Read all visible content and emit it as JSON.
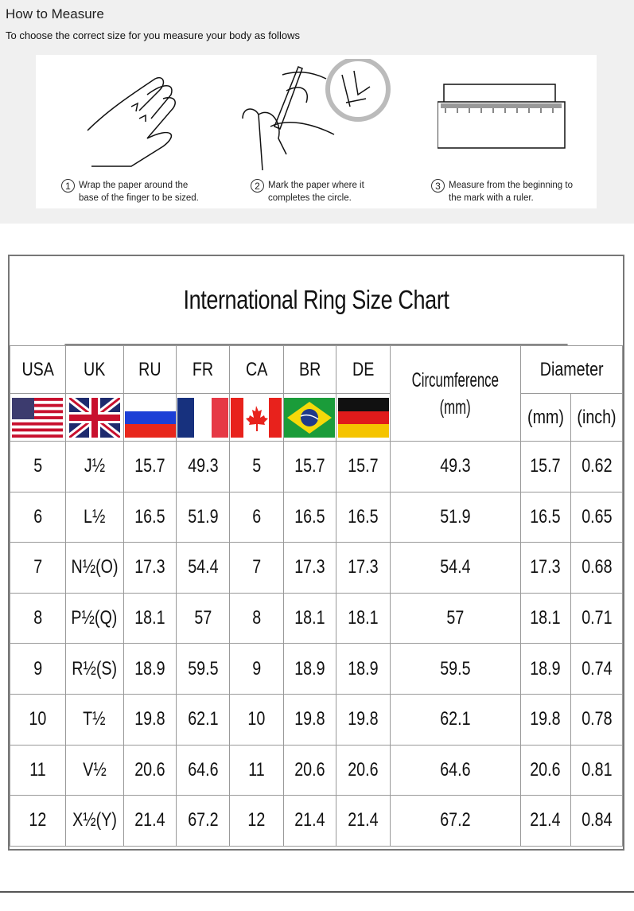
{
  "measure": {
    "title": "How to Measure",
    "subtitle": "To choose the correct size for you measure your body as follows",
    "steps": [
      {
        "num": "1",
        "line1": "Wrap the paper around the",
        "line2": "base of the finger to be sized."
      },
      {
        "num": "2",
        "line1": "Mark the paper where it",
        "line2": "completes the circle."
      },
      {
        "num": "3",
        "line1": "Measure from the beginning to",
        "line2": "the mark with a ruler."
      }
    ]
  },
  "chart": {
    "title": "International Ring Size Chart",
    "headers": [
      "USA",
      "UK",
      "RU",
      "FR",
      "CA",
      "BR",
      "DE"
    ],
    "circumference": "Circumference",
    "circ_unit": "(mm)",
    "diameter": "Diameter",
    "dia_mm": "(mm)",
    "dia_inch": "(inch)",
    "flags": [
      "us-flag",
      "uk-flag",
      "ru-flag",
      "fr-flag",
      "ca-flag",
      "br-flag",
      "de-flag"
    ],
    "rows": [
      [
        "5",
        "J½",
        "15.7",
        "49.3",
        "5",
        "15.7",
        "15.7",
        "49.3",
        "15.7",
        "0.62"
      ],
      [
        "6",
        "L½",
        "16.5",
        "51.9",
        "6",
        "16.5",
        "16.5",
        "51.9",
        "16.5",
        "0.65"
      ],
      [
        "7",
        "N½(O)",
        "17.3",
        "54.4",
        "7",
        "17.3",
        "17.3",
        "54.4",
        "17.3",
        "0.68"
      ],
      [
        "8",
        "P½(Q)",
        "18.1",
        "57",
        "8",
        "18.1",
        "18.1",
        "57",
        "18.1",
        "0.71"
      ],
      [
        "9",
        "R½(S)",
        "18.9",
        "59.5",
        "9",
        "18.9",
        "18.9",
        "59.5",
        "18.9",
        "0.74"
      ],
      [
        "10",
        "T½",
        "19.8",
        "62.1",
        "10",
        "19.8",
        "19.8",
        "62.1",
        "19.8",
        "0.78"
      ],
      [
        "11",
        "V½",
        "20.6",
        "64.6",
        "11",
        "20.6",
        "20.6",
        "64.6",
        "20.6",
        "0.81"
      ],
      [
        "12",
        "X½(Y)",
        "21.4",
        "67.2",
        "12",
        "21.4",
        "21.4",
        "67.2",
        "21.4",
        "0.84"
      ]
    ]
  }
}
